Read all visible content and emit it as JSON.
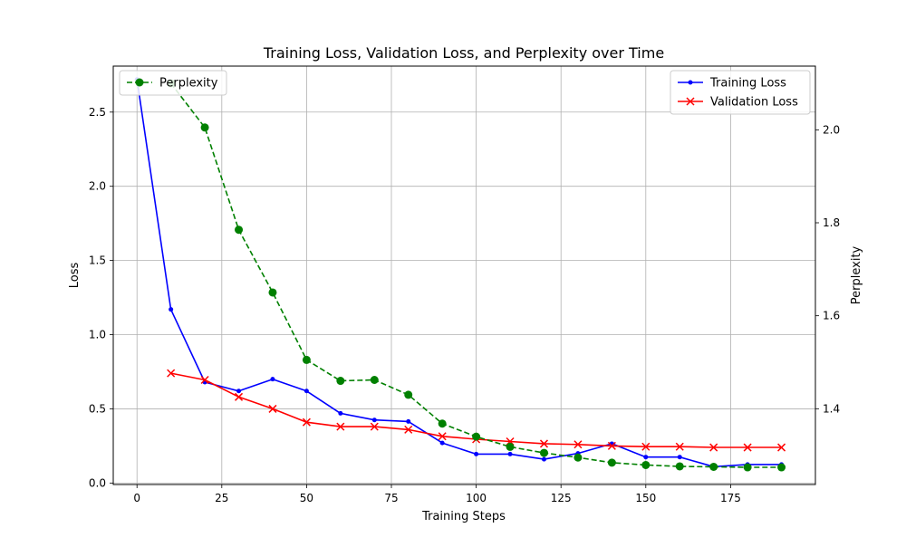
{
  "chart_data": {
    "type": "line",
    "title": "Training Loss, Validation Loss, and Perplexity over Time",
    "xlabel": "Training Steps",
    "ylabel": "Loss",
    "y2label": "Perplexity",
    "xlim": [
      -7,
      200
    ],
    "ylim": [
      -0.01,
      2.81
    ],
    "y2lim": [
      1.237,
      2.137
    ],
    "grid": true,
    "x_ticks": [
      0,
      25,
      50,
      75,
      100,
      125,
      150,
      175
    ],
    "y_ticks": [
      0.0,
      0.5,
      1.0,
      1.5,
      2.0,
      2.5
    ],
    "y_tick_labels": [
      "0.0",
      "0.5",
      "1.0",
      "1.5",
      "2.0",
      "2.5"
    ],
    "y2_ticks": [
      1.4,
      1.6,
      1.8,
      2.0
    ],
    "y2_tick_labels": [
      "1.4",
      "1.6",
      "1.8",
      "2.0"
    ],
    "legend_left_position": "top-left",
    "legend_right_position": "top-right",
    "series": [
      {
        "name": "Training Loss",
        "axis": "left",
        "color": "#0000ff",
        "marker": "dot",
        "linestyle": "solid",
        "x": [
          0,
          10,
          20,
          30,
          40,
          50,
          60,
          70,
          80,
          90,
          100,
          110,
          120,
          130,
          140,
          150,
          160,
          170,
          180,
          190
        ],
        "values": [
          2.72,
          1.17,
          0.68,
          0.62,
          0.7,
          0.62,
          0.47,
          0.425,
          0.415,
          0.27,
          0.195,
          0.195,
          0.16,
          0.2,
          0.265,
          0.175,
          0.175,
          0.11,
          0.125,
          0.125
        ]
      },
      {
        "name": "Validation Loss",
        "axis": "left",
        "color": "#ff0000",
        "marker": "x",
        "linestyle": "solid",
        "x": [
          10,
          20,
          30,
          40,
          50,
          60,
          70,
          80,
          90,
          100,
          110,
          120,
          130,
          140,
          150,
          160,
          170,
          180,
          190
        ],
        "values": [
          0.74,
          0.695,
          0.58,
          0.5,
          0.41,
          0.38,
          0.38,
          0.36,
          0.315,
          0.295,
          0.28,
          0.265,
          0.26,
          0.25,
          0.245,
          0.245,
          0.24,
          0.24,
          0.24
        ]
      },
      {
        "name": "Perplexity",
        "axis": "right",
        "color": "#008000",
        "marker": "circle",
        "linestyle": "dashed",
        "x": [
          10,
          20,
          30,
          40,
          50,
          60,
          70,
          80,
          90,
          100,
          110,
          120,
          130,
          140,
          150,
          160,
          170,
          180,
          190
        ],
        "values": [
          2.1,
          2.005,
          1.785,
          1.65,
          1.505,
          1.46,
          1.462,
          1.43,
          1.368,
          1.34,
          1.318,
          1.305,
          1.295,
          1.284,
          1.279,
          1.276,
          1.275,
          1.274,
          1.274
        ]
      }
    ]
  }
}
